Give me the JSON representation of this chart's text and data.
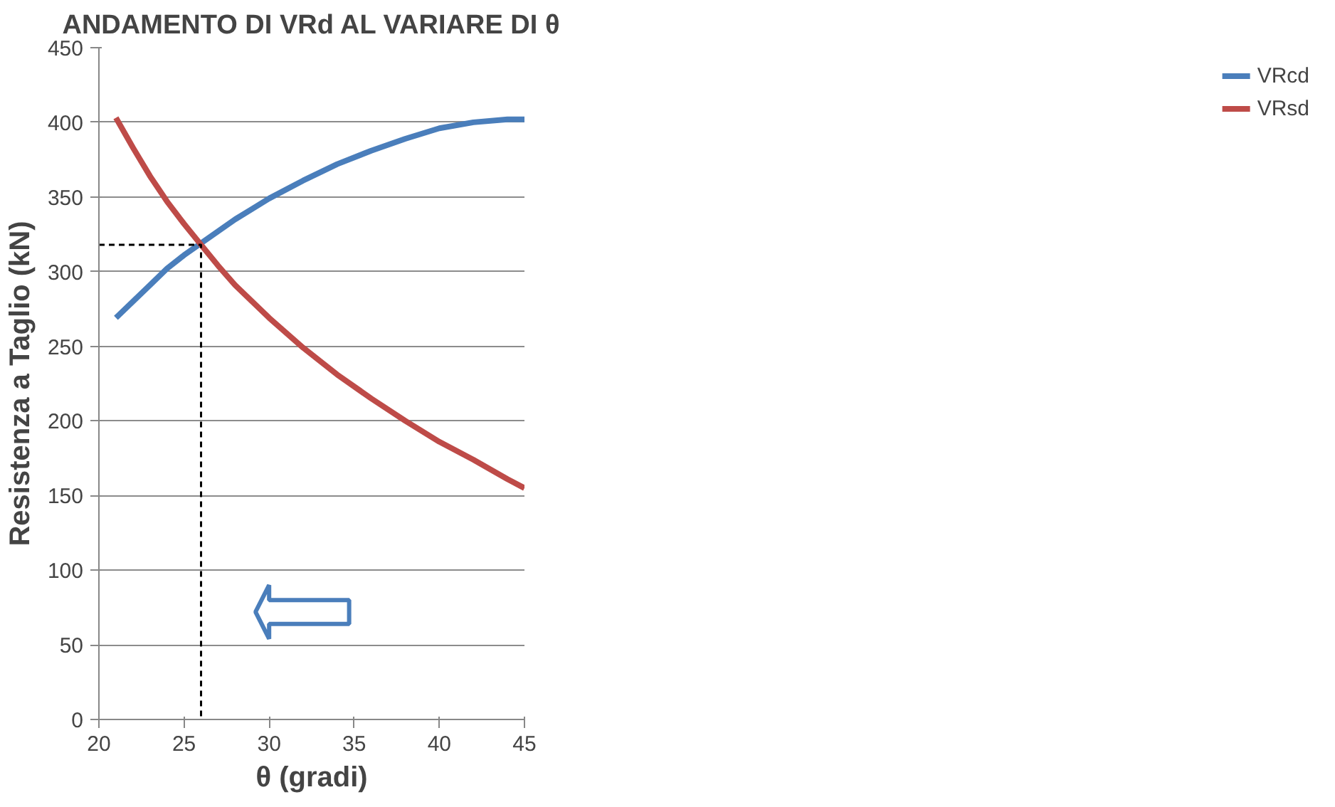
{
  "chart_data": {
    "type": "line",
    "title": "ANDAMENTO DI VRd AL VARIARE DI θ",
    "xlabel": "θ (gradi)",
    "ylabel": "Resistenza a Taglio (kN)",
    "xlim": [
      20,
      45
    ],
    "xticks": [
      20,
      25,
      30,
      35,
      40,
      45
    ],
    "ylim": [
      0,
      450
    ],
    "yticks": [
      0,
      50,
      100,
      150,
      200,
      250,
      300,
      350,
      400,
      450
    ],
    "grid": "y",
    "legend": "right",
    "marker": "none",
    "series": [
      {
        "name": "VRcd",
        "color": "#4a7ebb",
        "x": [
          21,
          22,
          23,
          24,
          25,
          26,
          27,
          28,
          29,
          30,
          32,
          34,
          36,
          38,
          40,
          42,
          44,
          45
        ],
        "values": [
          269,
          280,
          291,
          302,
          311,
          319,
          327,
          335,
          342,
          349,
          361,
          372,
          381,
          389,
          396,
          400,
          402,
          402
        ]
      },
      {
        "name": "VRsd",
        "color": "#be4b48",
        "x": [
          21,
          22,
          23,
          24,
          25,
          26,
          27,
          28,
          29,
          30,
          32,
          34,
          36,
          38,
          40,
          42,
          44,
          45
        ],
        "values": [
          403,
          383,
          364,
          347,
          332,
          318,
          304,
          291,
          280,
          269,
          249,
          231,
          215,
          200,
          186,
          174,
          161,
          155
        ]
      },
      {
        "type": "line",
        "color": "#000000",
        "line_style": "dashed",
        "x": [
          20,
          26,
          26
        ],
        "values": [
          318,
          318,
          0
        ]
      }
    ]
  }
}
